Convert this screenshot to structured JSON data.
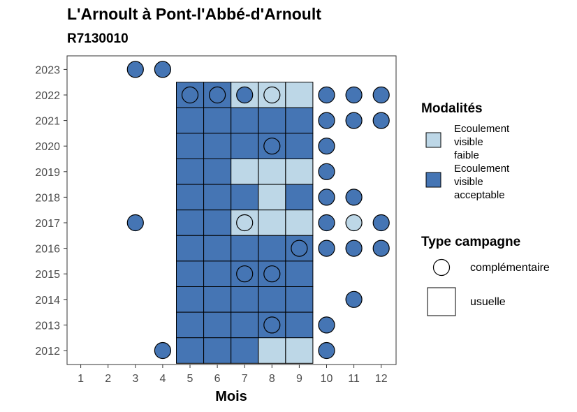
{
  "chart_data": {
    "type": "heatmap",
    "title": "L'Arnoult à Pont-l'Abbé-d'Arnoult",
    "subtitle": "R7130010",
    "xlabel": "Mois",
    "ylabel": "",
    "x_ticks": [
      "1",
      "2",
      "3",
      "4",
      "5",
      "6",
      "7",
      "8",
      "9",
      "10",
      "11",
      "12"
    ],
    "y_ticks": [
      "2012",
      "2013",
      "2014",
      "2015",
      "2016",
      "2017",
      "2018",
      "2019",
      "2020",
      "2021",
      "2022",
      "2023"
    ],
    "legend_modalites": {
      "title": "Modalités",
      "items": [
        {
          "key": "faible",
          "label_lines": [
            "Ecoulement",
            "visible",
            "faible"
          ],
          "color": "#bdd7e7"
        },
        {
          "key": "acceptable",
          "label_lines": [
            "Ecoulement",
            "visible",
            "acceptable"
          ],
          "color": "#4575b4"
        }
      ]
    },
    "legend_type": {
      "title": "Type campagne",
      "items": [
        {
          "key": "complementaire",
          "label": "complémentaire",
          "shape": "circle"
        },
        {
          "key": "usuelle",
          "label": "usuelle",
          "shape": "square"
        }
      ]
    },
    "observations": [
      {
        "year": 2023,
        "month": 3,
        "modalite": "acceptable",
        "type": "complementaire"
      },
      {
        "year": 2023,
        "month": 4,
        "modalite": "acceptable",
        "type": "complementaire"
      },
      {
        "year": 2022,
        "month": 5,
        "modalite": "acceptable",
        "type": "usuelle"
      },
      {
        "year": 2022,
        "month": 5,
        "modalite": "acceptable",
        "type": "complementaire"
      },
      {
        "year": 2022,
        "month": 6,
        "modalite": "acceptable",
        "type": "usuelle"
      },
      {
        "year": 2022,
        "month": 6,
        "modalite": "acceptable",
        "type": "complementaire"
      },
      {
        "year": 2022,
        "month": 7,
        "modalite": "faible",
        "type": "usuelle"
      },
      {
        "year": 2022,
        "month": 7,
        "modalite": "acceptable",
        "type": "complementaire"
      },
      {
        "year": 2022,
        "month": 8,
        "modalite": "faible",
        "type": "usuelle"
      },
      {
        "year": 2022,
        "month": 8,
        "modalite": "faible",
        "type": "complementaire"
      },
      {
        "year": 2022,
        "month": 9,
        "modalite": "faible",
        "type": "usuelle"
      },
      {
        "year": 2022,
        "month": 10,
        "modalite": "acceptable",
        "type": "complementaire"
      },
      {
        "year": 2022,
        "month": 11,
        "modalite": "acceptable",
        "type": "complementaire"
      },
      {
        "year": 2022,
        "month": 12,
        "modalite": "acceptable",
        "type": "complementaire"
      },
      {
        "year": 2021,
        "month": 5,
        "modalite": "acceptable",
        "type": "usuelle"
      },
      {
        "year": 2021,
        "month": 6,
        "modalite": "acceptable",
        "type": "usuelle"
      },
      {
        "year": 2021,
        "month": 7,
        "modalite": "acceptable",
        "type": "usuelle"
      },
      {
        "year": 2021,
        "month": 8,
        "modalite": "acceptable",
        "type": "usuelle"
      },
      {
        "year": 2021,
        "month": 9,
        "modalite": "acceptable",
        "type": "usuelle"
      },
      {
        "year": 2021,
        "month": 10,
        "modalite": "acceptable",
        "type": "complementaire"
      },
      {
        "year": 2021,
        "month": 11,
        "modalite": "acceptable",
        "type": "complementaire"
      },
      {
        "year": 2021,
        "month": 12,
        "modalite": "acceptable",
        "type": "complementaire"
      },
      {
        "year": 2020,
        "month": 5,
        "modalite": "acceptable",
        "type": "usuelle"
      },
      {
        "year": 2020,
        "month": 6,
        "modalite": "acceptable",
        "type": "usuelle"
      },
      {
        "year": 2020,
        "month": 7,
        "modalite": "acceptable",
        "type": "usuelle"
      },
      {
        "year": 2020,
        "month": 8,
        "modalite": "acceptable",
        "type": "usuelle"
      },
      {
        "year": 2020,
        "month": 8,
        "modalite": "acceptable",
        "type": "complementaire"
      },
      {
        "year": 2020,
        "month": 9,
        "modalite": "acceptable",
        "type": "usuelle"
      },
      {
        "year": 2020,
        "month": 10,
        "modalite": "acceptable",
        "type": "complementaire"
      },
      {
        "year": 2019,
        "month": 5,
        "modalite": "acceptable",
        "type": "usuelle"
      },
      {
        "year": 2019,
        "month": 6,
        "modalite": "acceptable",
        "type": "usuelle"
      },
      {
        "year": 2019,
        "month": 7,
        "modalite": "faible",
        "type": "usuelle"
      },
      {
        "year": 2019,
        "month": 8,
        "modalite": "faible",
        "type": "usuelle"
      },
      {
        "year": 2019,
        "month": 9,
        "modalite": "faible",
        "type": "usuelle"
      },
      {
        "year": 2019,
        "month": 10,
        "modalite": "acceptable",
        "type": "complementaire"
      },
      {
        "year": 2018,
        "month": 5,
        "modalite": "acceptable",
        "type": "usuelle"
      },
      {
        "year": 2018,
        "month": 6,
        "modalite": "acceptable",
        "type": "usuelle"
      },
      {
        "year": 2018,
        "month": 7,
        "modalite": "acceptable",
        "type": "usuelle"
      },
      {
        "year": 2018,
        "month": 8,
        "modalite": "faible",
        "type": "usuelle"
      },
      {
        "year": 2018,
        "month": 9,
        "modalite": "acceptable",
        "type": "usuelle"
      },
      {
        "year": 2018,
        "month": 10,
        "modalite": "acceptable",
        "type": "complementaire"
      },
      {
        "year": 2018,
        "month": 11,
        "modalite": "acceptable",
        "type": "complementaire"
      },
      {
        "year": 2017,
        "month": 3,
        "modalite": "acceptable",
        "type": "complementaire"
      },
      {
        "year": 2017,
        "month": 5,
        "modalite": "acceptable",
        "type": "usuelle"
      },
      {
        "year": 2017,
        "month": 6,
        "modalite": "acceptable",
        "type": "usuelle"
      },
      {
        "year": 2017,
        "month": 7,
        "modalite": "faible",
        "type": "usuelle"
      },
      {
        "year": 2017,
        "month": 7,
        "modalite": "faible",
        "type": "complementaire"
      },
      {
        "year": 2017,
        "month": 8,
        "modalite": "faible",
        "type": "usuelle"
      },
      {
        "year": 2017,
        "month": 9,
        "modalite": "faible",
        "type": "usuelle"
      },
      {
        "year": 2017,
        "month": 10,
        "modalite": "acceptable",
        "type": "complementaire"
      },
      {
        "year": 2017,
        "month": 11,
        "modalite": "faible",
        "type": "complementaire"
      },
      {
        "year": 2017,
        "month": 12,
        "modalite": "acceptable",
        "type": "complementaire"
      },
      {
        "year": 2016,
        "month": 5,
        "modalite": "acceptable",
        "type": "usuelle"
      },
      {
        "year": 2016,
        "month": 6,
        "modalite": "acceptable",
        "type": "usuelle"
      },
      {
        "year": 2016,
        "month": 7,
        "modalite": "acceptable",
        "type": "usuelle"
      },
      {
        "year": 2016,
        "month": 8,
        "modalite": "acceptable",
        "type": "usuelle"
      },
      {
        "year": 2016,
        "month": 9,
        "modalite": "acceptable",
        "type": "usuelle"
      },
      {
        "year": 2016,
        "month": 9,
        "modalite": "acceptable",
        "type": "complementaire"
      },
      {
        "year": 2016,
        "month": 10,
        "modalite": "acceptable",
        "type": "complementaire"
      },
      {
        "year": 2016,
        "month": 11,
        "modalite": "acceptable",
        "type": "complementaire"
      },
      {
        "year": 2016,
        "month": 12,
        "modalite": "acceptable",
        "type": "complementaire"
      },
      {
        "year": 2015,
        "month": 5,
        "modalite": "acceptable",
        "type": "usuelle"
      },
      {
        "year": 2015,
        "month": 6,
        "modalite": "acceptable",
        "type": "usuelle"
      },
      {
        "year": 2015,
        "month": 7,
        "modalite": "acceptable",
        "type": "usuelle"
      },
      {
        "year": 2015,
        "month": 7,
        "modalite": "acceptable",
        "type": "complementaire"
      },
      {
        "year": 2015,
        "month": 8,
        "modalite": "acceptable",
        "type": "usuelle"
      },
      {
        "year": 2015,
        "month": 8,
        "modalite": "acceptable",
        "type": "complementaire"
      },
      {
        "year": 2015,
        "month": 9,
        "modalite": "acceptable",
        "type": "usuelle"
      },
      {
        "year": 2014,
        "month": 5,
        "modalite": "acceptable",
        "type": "usuelle"
      },
      {
        "year": 2014,
        "month": 6,
        "modalite": "acceptable",
        "type": "usuelle"
      },
      {
        "year": 2014,
        "month": 7,
        "modalite": "acceptable",
        "type": "usuelle"
      },
      {
        "year": 2014,
        "month": 8,
        "modalite": "acceptable",
        "type": "usuelle"
      },
      {
        "year": 2014,
        "month": 9,
        "modalite": "acceptable",
        "type": "usuelle"
      },
      {
        "year": 2014,
        "month": 11,
        "modalite": "acceptable",
        "type": "complementaire"
      },
      {
        "year": 2013,
        "month": 5,
        "modalite": "acceptable",
        "type": "usuelle"
      },
      {
        "year": 2013,
        "month": 6,
        "modalite": "acceptable",
        "type": "usuelle"
      },
      {
        "year": 2013,
        "month": 7,
        "modalite": "acceptable",
        "type": "usuelle"
      },
      {
        "year": 2013,
        "month": 8,
        "modalite": "acceptable",
        "type": "usuelle"
      },
      {
        "year": 2013,
        "month": 8,
        "modalite": "acceptable",
        "type": "complementaire"
      },
      {
        "year": 2013,
        "month": 9,
        "modalite": "acceptable",
        "type": "usuelle"
      },
      {
        "year": 2013,
        "month": 10,
        "modalite": "acceptable",
        "type": "complementaire"
      },
      {
        "year": 2012,
        "month": 4,
        "modalite": "acceptable",
        "type": "complementaire"
      },
      {
        "year": 2012,
        "month": 5,
        "modalite": "acceptable",
        "type": "usuelle"
      },
      {
        "year": 2012,
        "month": 6,
        "modalite": "acceptable",
        "type": "usuelle"
      },
      {
        "year": 2012,
        "month": 7,
        "modalite": "acceptable",
        "type": "usuelle"
      },
      {
        "year": 2012,
        "month": 8,
        "modalite": "faible",
        "type": "usuelle"
      },
      {
        "year": 2012,
        "month": 9,
        "modalite": "faible",
        "type": "usuelle"
      },
      {
        "year": 2012,
        "month": 10,
        "modalite": "acceptable",
        "type": "complementaire"
      }
    ]
  }
}
